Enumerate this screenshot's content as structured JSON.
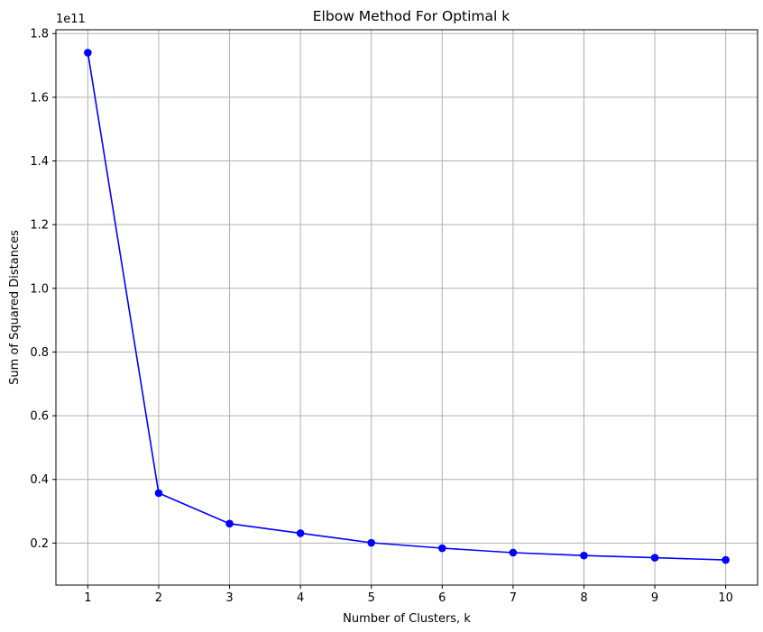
{
  "chart_data": {
    "type": "line",
    "title": "Elbow Method For Optimal k",
    "xlabel": "Number of Clusters, k",
    "ylabel": "Sum of Squared Distances",
    "y_offset_label": "1e11",
    "x": [
      1,
      2,
      3,
      4,
      5,
      6,
      7,
      8,
      9,
      10
    ],
    "x_ticks": [
      "1",
      "2",
      "3",
      "4",
      "5",
      "6",
      "7",
      "8",
      "9",
      "10"
    ],
    "y_ticks": [
      "0.2",
      "0.4",
      "0.6",
      "0.8",
      "1.0",
      "1.2",
      "1.4",
      "1.6",
      "1.8"
    ],
    "xlim": [
      0.55,
      10.45
    ],
    "ylim": [
      0.068,
      1.812
    ],
    "series": [
      {
        "values": [
          1.74,
          0.357,
          0.261,
          0.231,
          0.201,
          0.184,
          0.17,
          0.161,
          0.154,
          0.147
        ],
        "color": "#0000ff",
        "marker": "circle"
      }
    ],
    "grid": true,
    "grid_color": "#b0b0b0"
  }
}
